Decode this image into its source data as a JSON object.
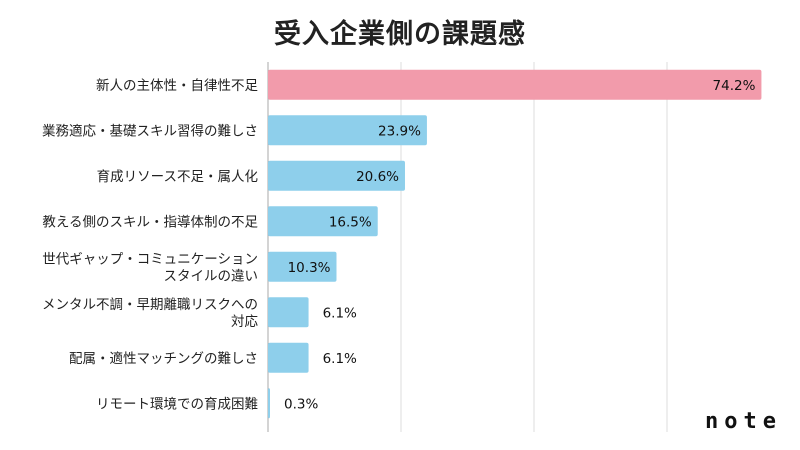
{
  "chart_data": {
    "type": "bar",
    "orientation": "horizontal",
    "title": "受入企業側の課題感",
    "categories": [
      [
        "新人の主体性・自律性不足"
      ],
      [
        "業務適応・基礎スキル習得の難しさ"
      ],
      [
        "育成リソース不足・属人化"
      ],
      [
        "教える側のスキル・指導体制の不足"
      ],
      [
        "世代ギャップ・コミュニケーション",
        "スタイルの違い"
      ],
      [
        "メンタル不調・早期離職リスクへの",
        "対応"
      ],
      [
        "配属・適性マッチングの難しさ"
      ],
      [
        "リモート環境での育成困難"
      ]
    ],
    "values": [
      74.2,
      23.9,
      20.6,
      16.5,
      10.3,
      6.1,
      6.1,
      0.3
    ],
    "value_labels": [
      "74.2%",
      "23.9%",
      "20.6%",
      "16.5%",
      "10.3%",
      "6.1%",
      "6.1%",
      "0.3%"
    ],
    "xlim": [
      0,
      80
    ],
    "grid": true,
    "colors": {
      "highlight": "#F29BAB",
      "default": "#8ECFEB",
      "grid": "#DDDDDD",
      "axis": "#AAAAAA"
    }
  },
  "brand": {
    "logo_text": "note"
  }
}
